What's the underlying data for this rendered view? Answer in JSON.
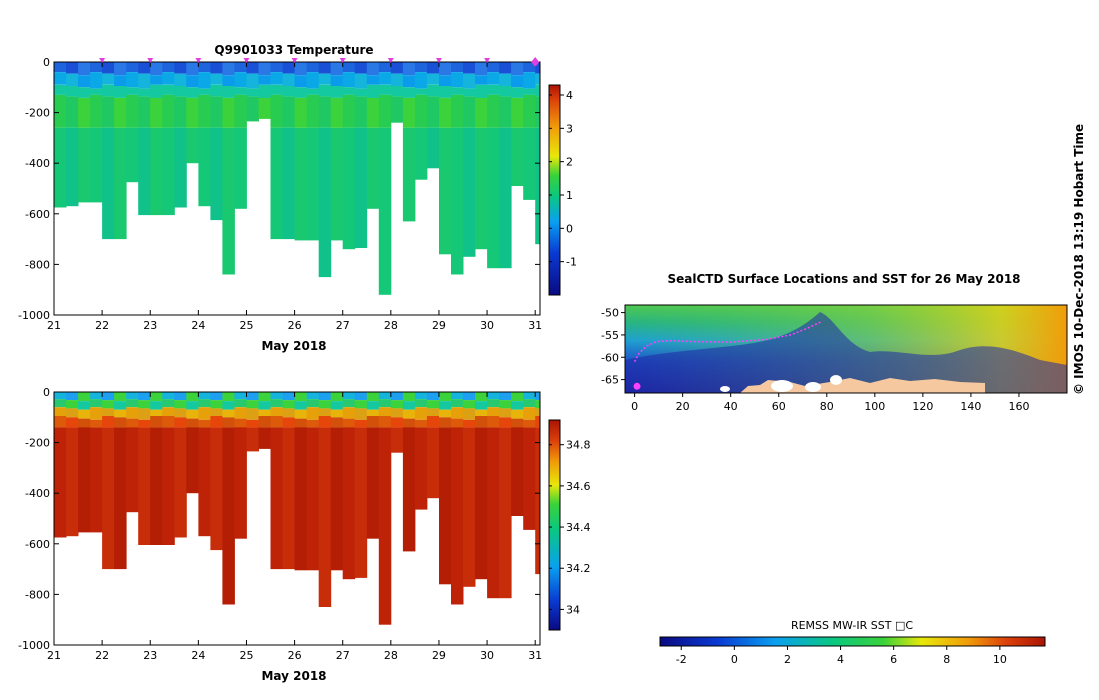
{
  "chart_data": [
    {
      "id": "temperature",
      "type": "heatmap",
      "title": "Q9901033  Temperature",
      "xlabel": "May 2018",
      "ylabel": "",
      "xlim": [
        21,
        31.1
      ],
      "ylim": [
        -1000,
        0
      ],
      "xticks": [
        "21",
        "22",
        "23",
        "24",
        "25",
        "26",
        "27",
        "28",
        "29",
        "30",
        "31"
      ],
      "yticks": [
        "0",
        "-200",
        "-400",
        "-600",
        "-800",
        "-1000"
      ],
      "colorbar": {
        "range": [
          -2,
          4.3
        ],
        "ticks": [
          "-1",
          "0",
          "1",
          "2",
          "3",
          "4"
        ],
        "tick_values": [
          -1,
          0,
          1,
          2,
          3,
          4
        ]
      },
      "surface_markers_day": [
        22.0,
        23.0,
        24.0,
        25.0,
        26.0,
        27.0,
        28.0,
        29.0,
        30.0,
        31.0
      ],
      "profiles": [
        {
          "t": 21.0,
          "d": 575
        },
        {
          "t": 21.25,
          "d": 570
        },
        {
          "t": 21.5,
          "d": 555
        },
        {
          "t": 21.75,
          "d": 555
        },
        {
          "t": 22.0,
          "d": 700
        },
        {
          "t": 22.25,
          "d": 700
        },
        {
          "t": 22.5,
          "d": 475
        },
        {
          "t": 22.75,
          "d": 605
        },
        {
          "t": 23.0,
          "d": 605
        },
        {
          "t": 23.25,
          "d": 605
        },
        {
          "t": 23.5,
          "d": 575
        },
        {
          "t": 23.75,
          "d": 400
        },
        {
          "t": 24.0,
          "d": 570
        },
        {
          "t": 24.25,
          "d": 625
        },
        {
          "t": 24.5,
          "d": 840
        },
        {
          "t": 24.75,
          "d": 580
        },
        {
          "t": 25.0,
          "d": 235
        },
        {
          "t": 25.25,
          "d": 225
        },
        {
          "t": 25.5,
          "d": 700
        },
        {
          "t": 25.75,
          "d": 700
        },
        {
          "t": 26.0,
          "d": 705
        },
        {
          "t": 26.25,
          "d": 705
        },
        {
          "t": 26.5,
          "d": 850
        },
        {
          "t": 26.75,
          "d": 705
        },
        {
          "t": 27.0,
          "d": 740
        },
        {
          "t": 27.25,
          "d": 735
        },
        {
          "t": 27.5,
          "d": 580
        },
        {
          "t": 27.75,
          "d": 920
        },
        {
          "t": 28.0,
          "d": 240
        },
        {
          "t": 28.25,
          "d": 630
        },
        {
          "t": 28.5,
          "d": 465
        },
        {
          "t": 28.75,
          "d": 420
        },
        {
          "t": 29.0,
          "d": 760
        },
        {
          "t": 29.25,
          "d": 840
        },
        {
          "t": 29.5,
          "d": 770
        },
        {
          "t": 29.75,
          "d": 740
        },
        {
          "t": 30.0,
          "d": 815
        },
        {
          "t": 30.25,
          "d": 815
        },
        {
          "t": 30.5,
          "d": 490
        },
        {
          "t": 30.75,
          "d": 545
        },
        {
          "t": 31.0,
          "d": 720
        }
      ]
    },
    {
      "id": "salinity",
      "type": "heatmap",
      "title": "",
      "xlabel": "May 2018",
      "ylabel": "",
      "xlim": [
        21,
        31.1
      ],
      "ylim": [
        -1000,
        0
      ],
      "xticks": [
        "21",
        "22",
        "23",
        "24",
        "25",
        "26",
        "27",
        "28",
        "29",
        "30",
        "31"
      ],
      "yticks": [
        "0",
        "-200",
        "-400",
        "-600",
        "-800",
        "-1000"
      ],
      "colorbar": {
        "range": [
          33.9,
          34.92
        ],
        "ticks": [
          "34",
          "34.2",
          "34.4",
          "34.6",
          "34.8"
        ],
        "tick_values": [
          34.0,
          34.2,
          34.4,
          34.6,
          34.8
        ]
      }
    },
    {
      "id": "sst-map",
      "type": "heatmap",
      "title": "SealCTD Surface Locations and SST for 26 May 2018",
      "xlabel": "",
      "ylabel": "",
      "xlim": [
        -4,
        180
      ],
      "ylim": [
        -68,
        -48.3
      ],
      "xticks": [
        "0",
        "20",
        "40",
        "60",
        "80",
        "100",
        "120",
        "140",
        "160"
      ],
      "yticks": [
        "-50",
        "-55",
        "-60",
        "-65"
      ],
      "colorbar": {
        "label": "REMSS MW-IR SST □C",
        "range": [
          -2.8,
          11.7
        ],
        "ticks": [
          "-2",
          "0",
          "2",
          "4",
          "6",
          "8",
          "10"
        ],
        "tick_values": [
          -2,
          0,
          2,
          4,
          6,
          8,
          10
        ]
      },
      "track": [
        {
          "lon": 0,
          "lat": -61
        },
        {
          "lon": 2,
          "lat": -59
        },
        {
          "lon": 5,
          "lat": -57.5
        },
        {
          "lon": 9,
          "lat": -56.5
        },
        {
          "lon": 15,
          "lat": -56.3
        },
        {
          "lon": 25,
          "lat": -56.5
        },
        {
          "lon": 40,
          "lat": -56.6
        },
        {
          "lon": 55,
          "lat": -56
        },
        {
          "lon": 65,
          "lat": -55
        },
        {
          "lon": 72,
          "lat": -53.5
        },
        {
          "lon": 78,
          "lat": -52
        }
      ],
      "start_point": {
        "lon": 1,
        "lat": -66.5
      }
    }
  ],
  "credit": "© IMOS 10-Dec-2018 13:19 Hobart Time"
}
